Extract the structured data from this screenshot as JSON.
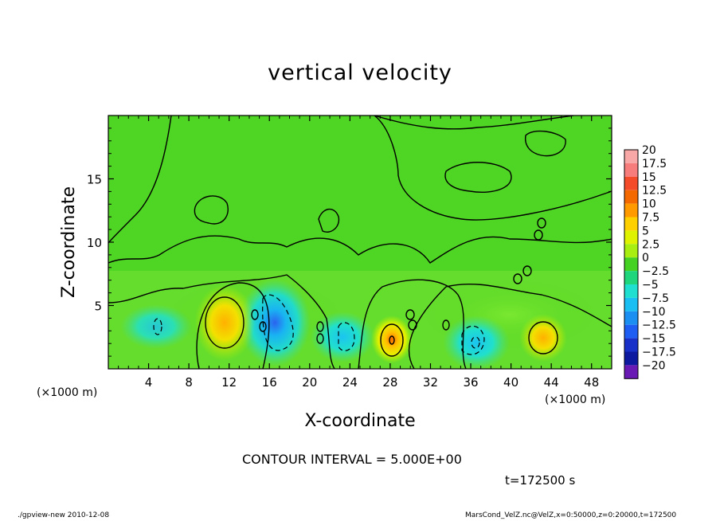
{
  "chart_data": {
    "type": "heatmap",
    "title": "vertical velocity",
    "xlabel": "X-coordinate",
    "ylabel": "Z-coordinate",
    "x_unit": "(×1000 m)",
    "x_unit_left": "(×1000 m)",
    "xlim": [
      0,
      50
    ],
    "ylim": [
      0,
      20
    ],
    "x_ticks": [
      4,
      8,
      12,
      16,
      20,
      24,
      28,
      32,
      36,
      40,
      44,
      48
    ],
    "y_ticks": [
      5,
      10,
      15
    ],
    "contour_interval_text": "CONTOUR INTERVAL = 5.000E+00",
    "time_text": "t=172500 s",
    "colorbar": {
      "levels": [
        "20",
        "17.5",
        "15",
        "12.5",
        "10",
        "7.5",
        "5",
        "2.5",
        "0",
        "−2.5",
        "−5",
        "−7.5",
        "−10",
        "−12.5",
        "−15",
        "−17.5",
        "−20"
      ],
      "colors": [
        "#f9a8a8",
        "#f77d7d",
        "#f44b2a",
        "#f46a00",
        "#ff9a00",
        "#ffd000",
        "#dff200",
        "#a8ee10",
        "#46d222",
        "#1fd67d",
        "#1fe0d0",
        "#19bff2",
        "#1b8ff2",
        "#1f5ef2",
        "#1830c8",
        "#0d1aa0",
        "#6a1ab4"
      ]
    },
    "features": [
      {
        "kind": "updraft",
        "x": 11.5,
        "z": 3.5,
        "peak": 7.5
      },
      {
        "kind": "downdraft",
        "x": 18.2,
        "z": 4.0,
        "peak": -10
      },
      {
        "kind": "downdraft",
        "x": 22.8,
        "z": 2.3,
        "peak": -5
      },
      {
        "kind": "updraft",
        "x": 28.3,
        "z": 2.3,
        "peak": 12.5
      },
      {
        "kind": "downdraft",
        "x": 35.8,
        "z": 2.0,
        "peak": -5
      },
      {
        "kind": "updraft",
        "x": 42.8,
        "z": 2.4,
        "peak": 7.5
      },
      {
        "kind": "downdraft",
        "x": 4.9,
        "z": 3.2,
        "peak": -2.5
      }
    ]
  },
  "footer": {
    "left": "./gpview-new  2010-12-08",
    "right": "MarsCond_VelZ.nc@VelZ,x=0:50000,z=0:20000,t=172500"
  }
}
